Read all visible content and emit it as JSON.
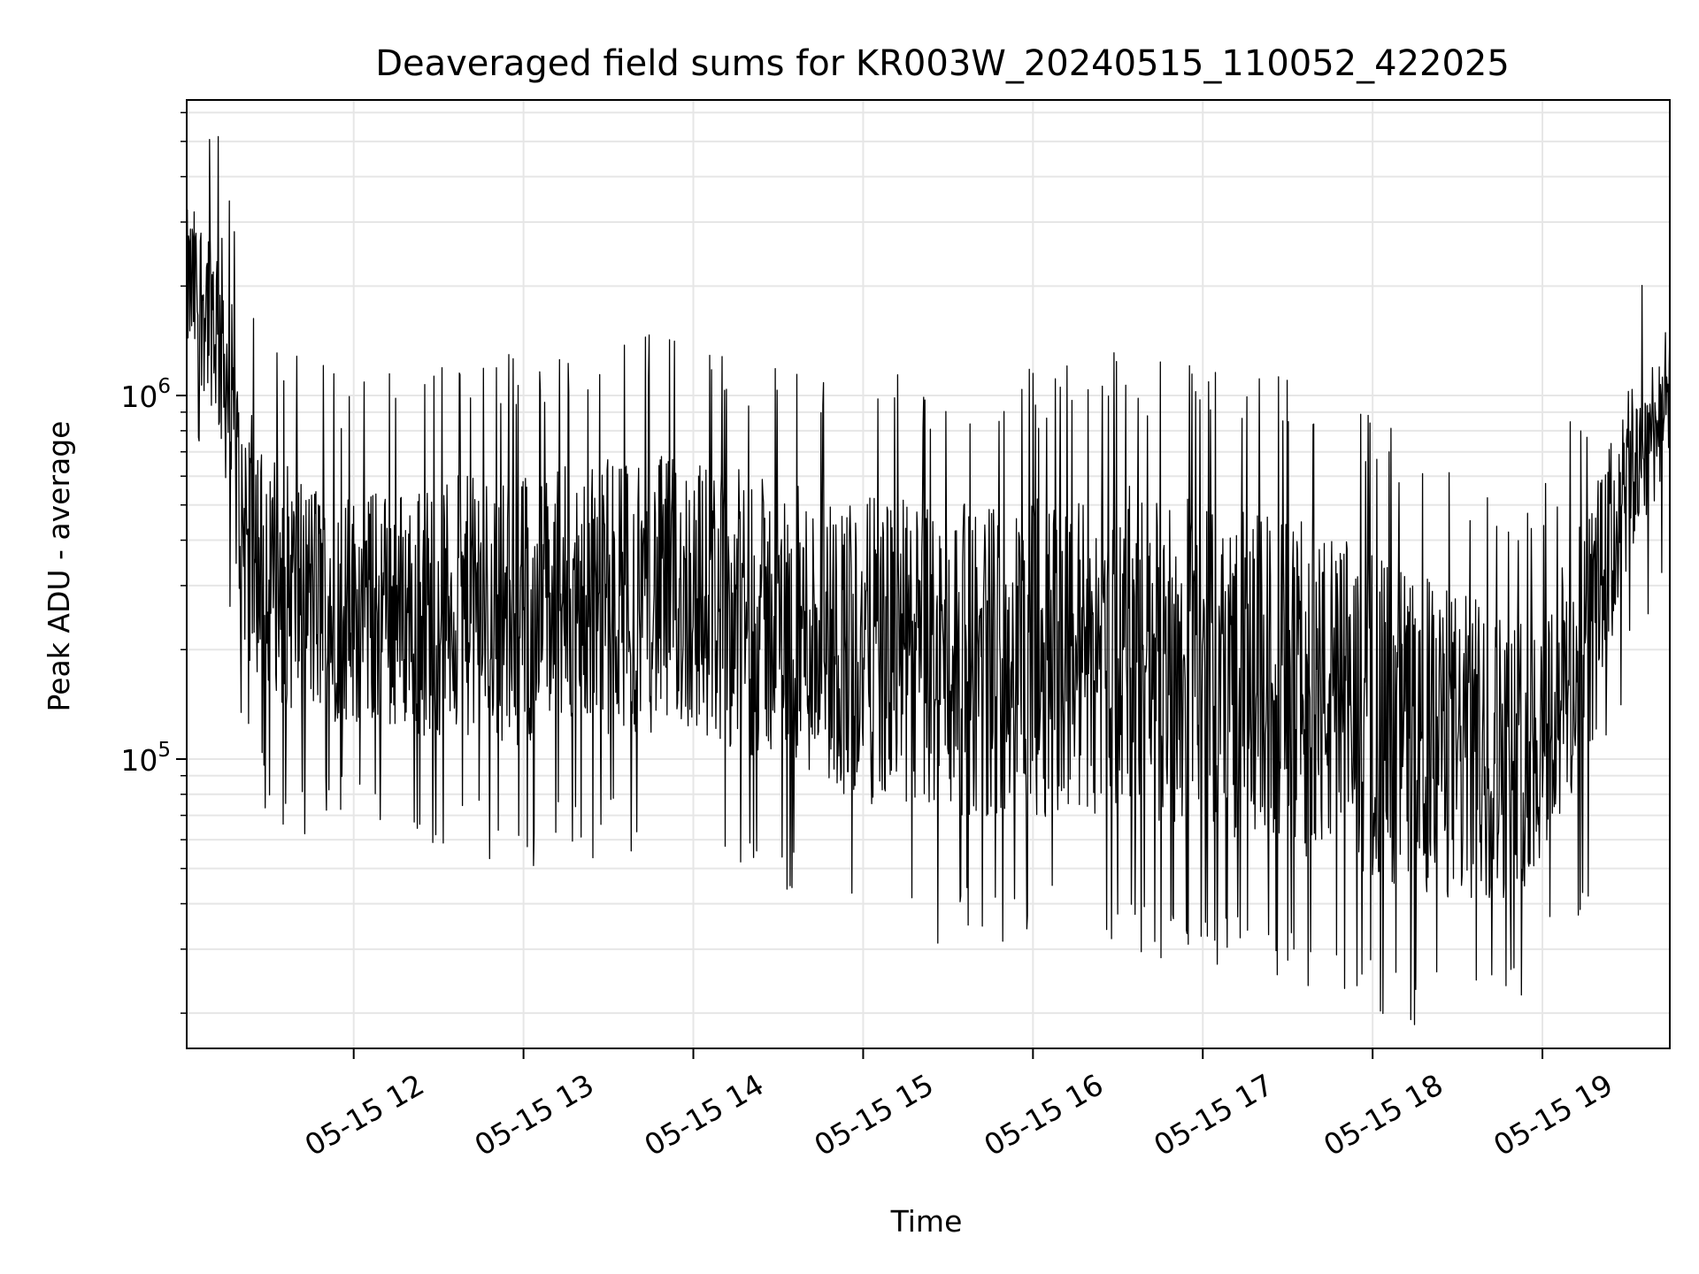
{
  "chart_data": {
    "type": "line",
    "title": "Deaveraged field sums for KR003W_20240515_110052_422025",
    "xlabel": "Time",
    "ylabel": "Peak ADU - average",
    "yscale": "log",
    "grid": true,
    "line_color": "#000000",
    "grid_color": "#e6e6e6",
    "xlim": [
      "2024-05-15 11:01",
      "2024-05-15 19:45"
    ],
    "ylim": [
      16000,
      6500000
    ],
    "x_ticks": [
      {
        "value": "2024-05-15 12:00",
        "label": "05-15 12"
      },
      {
        "value": "2024-05-15 13:00",
        "label": "05-15 13"
      },
      {
        "value": "2024-05-15 14:00",
        "label": "05-15 14"
      },
      {
        "value": "2024-05-15 15:00",
        "label": "05-15 15"
      },
      {
        "value": "2024-05-15 16:00",
        "label": "05-15 16"
      },
      {
        "value": "2024-05-15 17:00",
        "label": "05-15 17"
      },
      {
        "value": "2024-05-15 18:00",
        "label": "05-15 18"
      },
      {
        "value": "2024-05-15 19:00",
        "label": "05-15 19"
      }
    ],
    "y_ticks": [
      {
        "value": 100000,
        "base": "10",
        "exp": "5"
      },
      {
        "value": 1000000,
        "base": "10",
        "exp": "6"
      }
    ],
    "envelope": {
      "x": [
        "2024-05-15 11:01",
        "2024-05-15 11:10",
        "2024-05-15 11:15",
        "2024-05-15 11:20",
        "2024-05-15 11:30",
        "2024-05-15 11:45",
        "2024-05-15 12:00",
        "2024-05-15 12:30",
        "2024-05-15 13:00",
        "2024-05-15 13:30",
        "2024-05-15 14:00",
        "2024-05-15 14:30",
        "2024-05-15 15:00",
        "2024-05-15 15:30",
        "2024-05-15 16:00",
        "2024-05-15 16:30",
        "2024-05-15 17:00",
        "2024-05-15 17:30",
        "2024-05-15 18:00",
        "2024-05-15 18:30",
        "2024-05-15 18:50",
        "2024-05-15 19:00",
        "2024-05-15 19:15",
        "2024-05-15 19:30",
        "2024-05-15 19:45"
      ],
      "high": [
        4000000,
        4500000,
        3500000,
        1500000,
        1000000,
        850000,
        750000,
        850000,
        900000,
        1000000,
        1000000,
        850000,
        800000,
        780000,
        800000,
        900000,
        800000,
        750000,
        600000,
        450000,
        380000,
        400000,
        700000,
        1300000,
        1900000
      ],
      "low": [
        1000000,
        700000,
        400000,
        150000,
        100000,
        90000,
        90000,
        80000,
        75000,
        80000,
        80000,
        65000,
        50000,
        45000,
        45000,
        45000,
        40000,
        35000,
        30000,
        25000,
        28000,
        35000,
        55000,
        250000,
        550000
      ]
    }
  }
}
